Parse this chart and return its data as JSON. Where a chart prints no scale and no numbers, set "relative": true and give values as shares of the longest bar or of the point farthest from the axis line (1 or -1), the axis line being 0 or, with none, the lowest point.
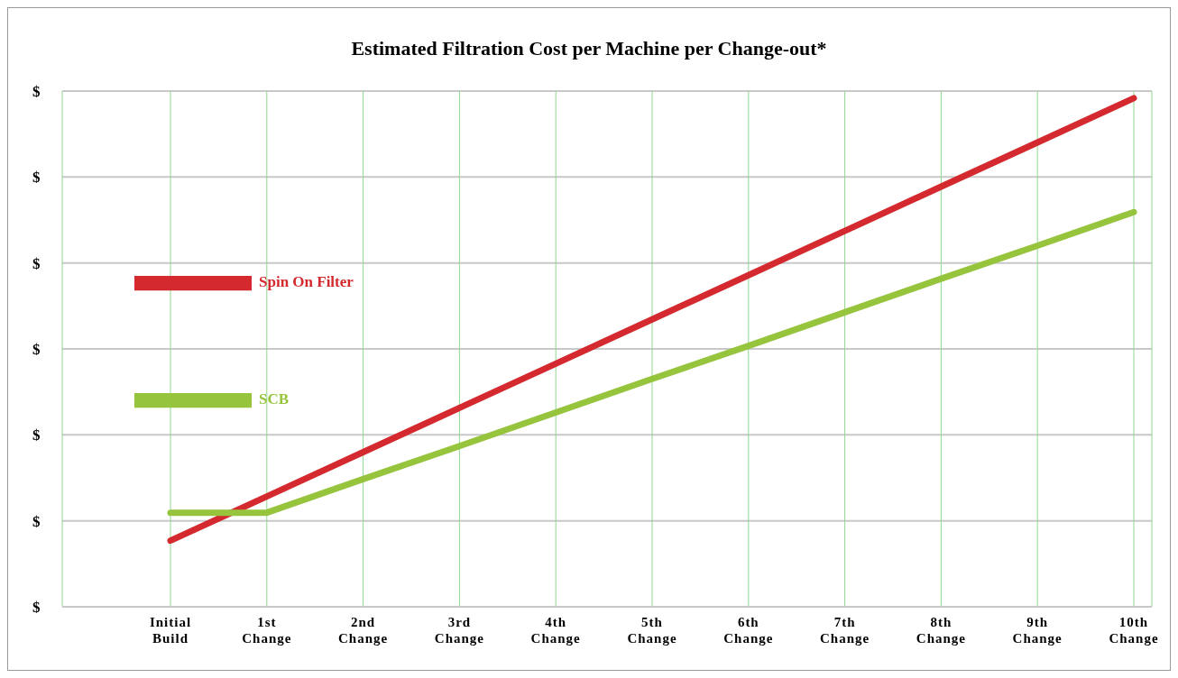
{
  "chart_data": {
    "type": "line",
    "title": "Estimated Filtration Cost per Machine per Change-out*",
    "relative": true,
    "categories": [
      "Initial Build",
      "1st Change",
      "2nd Change",
      "3rd Change",
      "4th Change",
      "5th Change",
      "6th Change",
      "7th Change",
      "8th Change",
      "9th Change",
      "10th Change"
    ],
    "series": [
      {
        "name": "Spin On Filter",
        "color": "#d42a2f",
        "values": [
          0.13,
          0.217,
          0.304,
          0.391,
          0.478,
          0.565,
          0.652,
          0.739,
          0.826,
          0.913,
          1.0
        ]
      },
      {
        "name": "SCB",
        "color": "#96c43c",
        "values": [
          0.185,
          0.185,
          0.251,
          0.316,
          0.382,
          0.448,
          0.513,
          0.579,
          0.645,
          0.71,
          0.776
        ]
      }
    ],
    "annotations": [
      "$",
      "$",
      "$",
      "$",
      "$",
      "$",
      "$"
    ],
    "grid": true,
    "legend": "top left",
    "marker": "none",
    "line_style": "solid"
  }
}
